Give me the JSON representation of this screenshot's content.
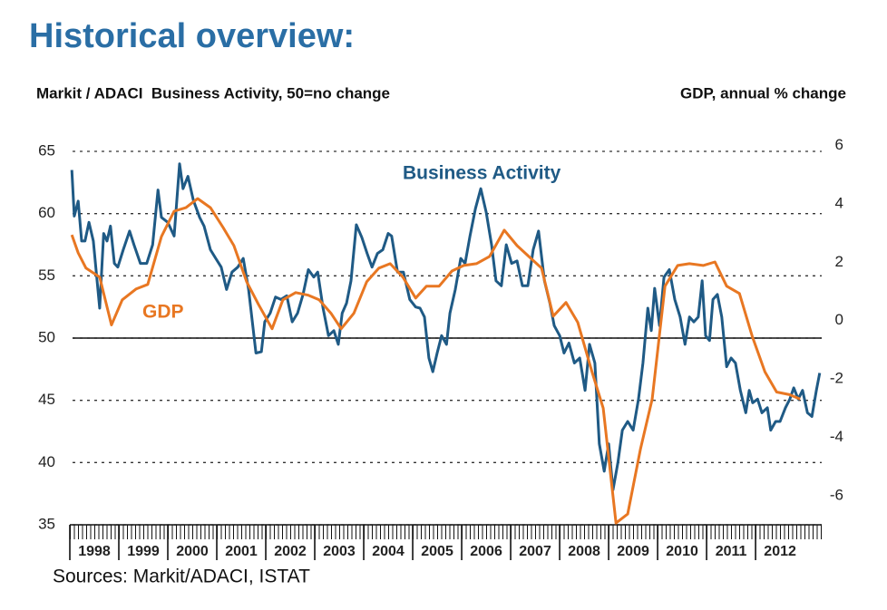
{
  "chart_data": {
    "type": "line",
    "title": "Historical overview:",
    "y_axis_label": "Markit / ADACI  Business Activity, 50=no change",
    "y2_axis_label": "GDP, annual % change",
    "source": "Sources: Markit/ADACI, ISTAT",
    "xlim": [
      1998,
      2013.35
    ],
    "xticks": [
      {
        "value": 1998,
        "label": "1998"
      },
      {
        "value": 1999,
        "label": "1999"
      },
      {
        "value": 2000,
        "label": "2000"
      },
      {
        "value": 2001,
        "label": "2001"
      },
      {
        "value": 2002,
        "label": "2002"
      },
      {
        "value": 2003,
        "label": "2003"
      },
      {
        "value": 2004,
        "label": "2004"
      },
      {
        "value": 2005,
        "label": "2005"
      },
      {
        "value": 2006,
        "label": "2006"
      },
      {
        "value": 2007,
        "label": "2007"
      },
      {
        "value": 2008,
        "label": "2008"
      },
      {
        "value": 2009,
        "label": "2009"
      },
      {
        "value": 2010,
        "label": "2010"
      },
      {
        "value": 2011,
        "label": "2011"
      },
      {
        "value": 2012,
        "label": "2012"
      }
    ],
    "ylim": [
      35,
      65
    ],
    "yticks": [
      35,
      40,
      45,
      50,
      55,
      60,
      65
    ],
    "y2lim": [
      -7,
      5.8
    ],
    "y2ticks": [
      -6,
      -4,
      -2,
      0,
      2,
      4,
      6
    ],
    "baseline": 50,
    "grid": true,
    "series": [
      {
        "name": "Business Activity",
        "color": "#1f5a85",
        "axis": "y",
        "x": [
          1998.04,
          1998.09,
          1998.17,
          1998.24,
          1998.31,
          1998.39,
          1998.48,
          1998.61,
          1998.69,
          1998.76,
          1998.83,
          1998.91,
          1998.98,
          1999.09,
          1999.22,
          1999.31,
          1999.44,
          1999.57,
          1999.69,
          1999.8,
          1999.87,
          2000,
          2000.13,
          2000.24,
          2000.31,
          2000.41,
          2000.52,
          2000.65,
          2000.74,
          2000.87,
          2000.98,
          2001.09,
          2001.2,
          2001.31,
          2001.43,
          2001.54,
          2001.65,
          2001.8,
          2001.91,
          2001.98,
          2002.09,
          2002.2,
          2002.31,
          2002.43,
          2002.54,
          2002.65,
          2002.76,
          2002.87,
          2002.98,
          2003.06,
          2003.17,
          2003.28,
          2003.39,
          2003.48,
          2003.56,
          2003.65,
          2003.74,
          2003.85,
          2003.96,
          2004.07,
          2004.17,
          2004.28,
          2004.39,
          2004.5,
          2004.57,
          2004.69,
          2004.81,
          2004.94,
          2005.06,
          2005.15,
          2005.24,
          2005.33,
          2005.41,
          2005.5,
          2005.59,
          2005.69,
          2005.76,
          2005.87,
          2005.98,
          2006.07,
          2006.17,
          2006.28,
          2006.39,
          2006.5,
          2006.61,
          2006.7,
          2006.81,
          2006.91,
          2007.02,
          2007.13,
          2007.24,
          2007.35,
          2007.46,
          2007.57,
          2007.69,
          2007.8,
          2007.89,
          2008,
          2008.09,
          2008.19,
          2008.3,
          2008.41,
          2008.52,
          2008.61,
          2008.72,
          2008.81,
          2008.91,
          2009,
          2009.09,
          2009.19,
          2009.28,
          2009.39,
          2009.5,
          2009.61,
          2009.7,
          2009.8,
          2009.87,
          2009.94,
          2010.04,
          2010.13,
          2010.24,
          2010.35,
          2010.46,
          2010.56,
          2010.65,
          2010.74,
          2010.83,
          2010.91,
          2010.98,
          2011.06,
          2011.13,
          2011.22,
          2011.31,
          2011.41,
          2011.5,
          2011.59,
          2011.69,
          2011.8,
          2011.87,
          2011.94,
          2012.04,
          2012.13,
          2012.24,
          2012.31,
          2012.41,
          2012.5,
          2012.61,
          2012.7,
          2012.78,
          2012.87,
          2012.96,
          2013.06,
          2013.15,
          2013.24,
          2013.31
        ],
        "values": [
          63.5,
          59.8,
          61,
          57.8,
          57.8,
          59.3,
          57.8,
          52.4,
          58.4,
          57.8,
          59,
          56,
          55.7,
          57.1,
          58.6,
          57.5,
          56,
          56,
          57.5,
          61.9,
          59.7,
          59.3,
          58.2,
          64,
          62,
          63,
          61.1,
          59.7,
          59,
          57.1,
          56.4,
          55.7,
          53.9,
          55.3,
          55.7,
          56.4,
          53.9,
          48.8,
          48.9,
          51.3,
          52,
          53.3,
          53.1,
          53.4,
          51.3,
          52,
          53.5,
          55.5,
          54.9,
          55.3,
          52.4,
          50.2,
          50.6,
          49.5,
          52,
          52.8,
          54.6,
          59.1,
          58.1,
          56.8,
          55.7,
          56.8,
          57.1,
          58.4,
          58.2,
          55.3,
          55.3,
          53.1,
          52.5,
          52.4,
          51.7,
          48.4,
          47.3,
          48.8,
          50.2,
          49.5,
          52,
          53.9,
          56.4,
          56,
          58.2,
          60.4,
          62,
          60.1,
          57.5,
          54.6,
          54.2,
          57.5,
          56,
          56.2,
          54.2,
          54.2,
          57.1,
          58.6,
          54.6,
          52.8,
          51,
          50.2,
          48.8,
          49.6,
          48,
          48.4,
          45.8,
          49.5,
          48,
          41.5,
          39.3,
          41.5,
          37.8,
          40,
          42.6,
          43.3,
          42.6,
          45.1,
          48,
          52.4,
          50.6,
          54,
          51,
          54.9,
          55.5,
          53.1,
          51.7,
          49.5,
          51.7,
          51.3,
          51.7,
          54.6,
          50.2,
          49.8,
          53.1,
          53.5,
          51.7,
          47.7,
          48.4,
          48,
          45.8,
          44,
          45.8,
          44.8,
          45.1,
          44,
          44.4,
          42.6,
          43.3,
          43.3,
          44.4,
          45.1,
          46,
          45.1,
          45.8,
          44,
          43.7,
          45.8,
          47.2
        ]
      },
      {
        "name": "GDP",
        "color": "#e87722",
        "axis": "y2",
        "x": [
          1998.04,
          1998.17,
          1998.33,
          1998.61,
          1998.85,
          1999.07,
          1999.35,
          1999.59,
          1999.87,
          2000.13,
          2000.37,
          2000.61,
          2000.87,
          2001.13,
          2001.35,
          2001.61,
          2001.85,
          2002.13,
          2002.35,
          2002.61,
          2002.87,
          2003.09,
          2003.33,
          2003.54,
          2003.8,
          2004.06,
          2004.31,
          2004.54,
          2004.8,
          2005.06,
          2005.28,
          2005.54,
          2005.8,
          2006.04,
          2006.3,
          2006.57,
          2006.87,
          2007.13,
          2007.37,
          2007.63,
          2007.87,
          2008.13,
          2008.37,
          2008.65,
          2008.89,
          2009.15,
          2009.39,
          2009.65,
          2009.89,
          2010.15,
          2010.41,
          2010.65,
          2010.93,
          2011.17,
          2011.41,
          2011.67,
          2011.93,
          2012.19,
          2012.43,
          2012.69,
          2012.91
        ],
        "values": [
          2.94,
          2.32,
          1.8,
          1.49,
          -0.15,
          0.71,
          1.08,
          1.24,
          2.88,
          3.75,
          3.87,
          4.18,
          3.87,
          3.19,
          2.57,
          1.33,
          0.56,
          -0.28,
          0.71,
          0.96,
          0.87,
          0.71,
          0.25,
          -0.28,
          0.25,
          1.33,
          1.8,
          1.95,
          1.49,
          0.77,
          1.18,
          1.18,
          1.7,
          1.89,
          1.95,
          2.2,
          3.1,
          2.57,
          2.2,
          1.8,
          0.15,
          0.62,
          -0.06,
          -1.7,
          -3,
          -6.94,
          -6.63,
          -4.4,
          -2.69,
          1.18,
          1.89,
          1.95,
          1.89,
          2.01,
          1.18,
          0.93,
          -0.53,
          -1.76,
          -2.45,
          -2.54,
          -2.69
        ]
      }
    ]
  }
}
